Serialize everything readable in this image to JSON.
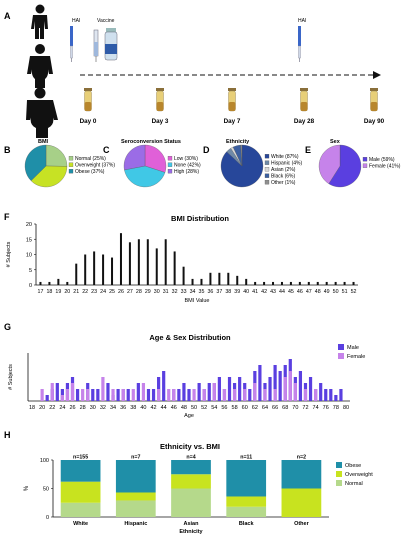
{
  "colors": {
    "normal": "#b5d98b",
    "overweight": "#c8e31f",
    "obese": "#1f8fa8",
    "pie_normal": "#a7d088",
    "pie_overweight": "#c7e224",
    "pie_obese": "#1f8fa8",
    "low": "#e060d8",
    "none": "#40c8e6",
    "high": "#9b6ce6",
    "white": "#27479a",
    "male": "#5a3fe0",
    "female": "#c683ea",
    "black": "#111111"
  },
  "panel_a": {
    "letter": "A",
    "hai1": "HAI",
    "vaccine": "Vaccine",
    "hai2": "HAI",
    "days": [
      "Day 0",
      "Day 3",
      "Day 7",
      "Day 28",
      "Day 90"
    ]
  },
  "panels": {
    "b": "B",
    "c": "C",
    "d": "D",
    "e": "E",
    "f": "F",
    "g": "G",
    "h": "H"
  },
  "chart_data": [
    {
      "id": "bmi_pie",
      "type": "pie",
      "title": "BMI",
      "labels": [
        "Normal (25%)",
        "Overweight (37%)",
        "Obese (37%)"
      ],
      "values": [
        25,
        37,
        37
      ]
    },
    {
      "id": "seroconversion_pie",
      "type": "pie",
      "title": "Seroconversion Status",
      "labels": [
        "Low (30%)",
        "None (42%)",
        "High (28%)"
      ],
      "values": [
        30,
        42,
        28
      ]
    },
    {
      "id": "ethnicity_pie",
      "type": "pie",
      "title": "Ethnicity",
      "labels": [
        "White (87%)",
        "Hispanic (4%)",
        "Asian (2%)",
        "Black (6%)",
        "Other (1%)"
      ],
      "values": [
        87,
        4,
        2,
        6,
        1
      ]
    },
    {
      "id": "sex_pie",
      "type": "pie",
      "title": "Sex",
      "labels": [
        "Male (59%)",
        "Female (41%)"
      ],
      "values": [
        59,
        41
      ]
    },
    {
      "id": "bmi_distribution",
      "type": "bar",
      "title": "BMI Distribution",
      "xlabel": "BMI Value",
      "ylabel": "# Subjects",
      "ylim": [
        0,
        20
      ],
      "yticks": [
        0,
        5,
        10,
        15,
        20
      ],
      "x": [
        17,
        18,
        19,
        20,
        21,
        22,
        23,
        24,
        25,
        26,
        27,
        28,
        29,
        30,
        31,
        32,
        33,
        34,
        35,
        36,
        37,
        38,
        39,
        40,
        41,
        42,
        43,
        44,
        45,
        46,
        47,
        48,
        49,
        50,
        51,
        52
      ],
      "values": [
        1,
        1,
        2,
        1,
        7,
        10,
        11,
        10,
        9,
        17,
        14,
        15,
        15,
        12,
        15,
        11,
        6,
        2,
        2,
        4,
        4,
        4,
        3,
        2,
        1,
        1,
        1,
        1,
        1,
        1,
        1,
        1,
        1,
        1,
        1,
        1
      ]
    },
    {
      "id": "age_sex_distribution",
      "type": "bar",
      "title": "Age & Sex Distribution",
      "xlabel": "Age",
      "ylabel": "# Subjects",
      "xticks": [
        18,
        20,
        22,
        24,
        26,
        28,
        30,
        32,
        34,
        36,
        38,
        40,
        42,
        44,
        46,
        48,
        50,
        52,
        54,
        56,
        58,
        60,
        62,
        64,
        66,
        68,
        70,
        72,
        74,
        76,
        78,
        80
      ],
      "ylim": [
        0,
        8
      ],
      "series": [
        {
          "name": "Male",
          "x": [
            21,
            22,
            23,
            24,
            25,
            26,
            27,
            29,
            30,
            31,
            33,
            34,
            35,
            36,
            37,
            39,
            41,
            42,
            43,
            44,
            46,
            47,
            48,
            49,
            51,
            52,
            53,
            54,
            55,
            56,
            57,
            58,
            59,
            60,
            61,
            62,
            63,
            64,
            65,
            66,
            67,
            68,
            69,
            70,
            71,
            72,
            73,
            74,
            75,
            76,
            77,
            78,
            79
          ],
          "values": [
            1,
            2,
            3,
            2,
            3,
            4,
            2,
            3,
            2,
            2,
            3,
            1,
            2,
            2,
            2,
            3,
            2,
            2,
            4,
            5,
            2,
            2,
            3,
            2,
            3,
            2,
            3,
            3,
            4,
            2,
            4,
            3,
            4,
            3,
            2,
            5,
            6,
            3,
            4,
            6,
            5,
            6,
            7,
            4,
            5,
            3,
            4,
            2,
            3,
            2,
            2,
            1,
            2
          ]
        },
        {
          "name": "Female",
          "x": [
            20,
            22,
            24,
            25,
            26,
            28,
            29,
            32,
            34,
            36,
            38,
            40,
            43,
            45,
            46,
            50,
            52,
            54,
            56,
            58,
            60,
            62,
            64,
            66,
            68,
            69,
            70,
            72,
            74
          ],
          "values": [
            2,
            3,
            1,
            2,
            3,
            2,
            2,
            4,
            2,
            2,
            2,
            3,
            2,
            2,
            2,
            2,
            2,
            3,
            2,
            2,
            2,
            3,
            2,
            2,
            4,
            5,
            3,
            2,
            2
          ]
        }
      ]
    },
    {
      "id": "ethnicity_vs_bmi",
      "type": "bar",
      "stacked": true,
      "title": "Ethnicity vs. BMI",
      "xlabel": "Ethnicity",
      "ylabel": "%",
      "ylim": [
        0,
        100
      ],
      "yticks": [
        0,
        50,
        100
      ],
      "categories": [
        "White",
        "Hispanic",
        "Asian",
        "Black",
        "Other"
      ],
      "annotations": [
        "n=155",
        "n=7",
        "n=4",
        "n=11",
        "n=2"
      ],
      "series": [
        {
          "name": "Normal",
          "values": [
            25,
            29,
            50,
            18,
            0
          ]
        },
        {
          "name": "Overweight",
          "values": [
            37,
            14,
            25,
            18,
            50
          ]
        },
        {
          "name": "Obese",
          "values": [
            38,
            57,
            25,
            64,
            50
          ]
        }
      ]
    }
  ]
}
